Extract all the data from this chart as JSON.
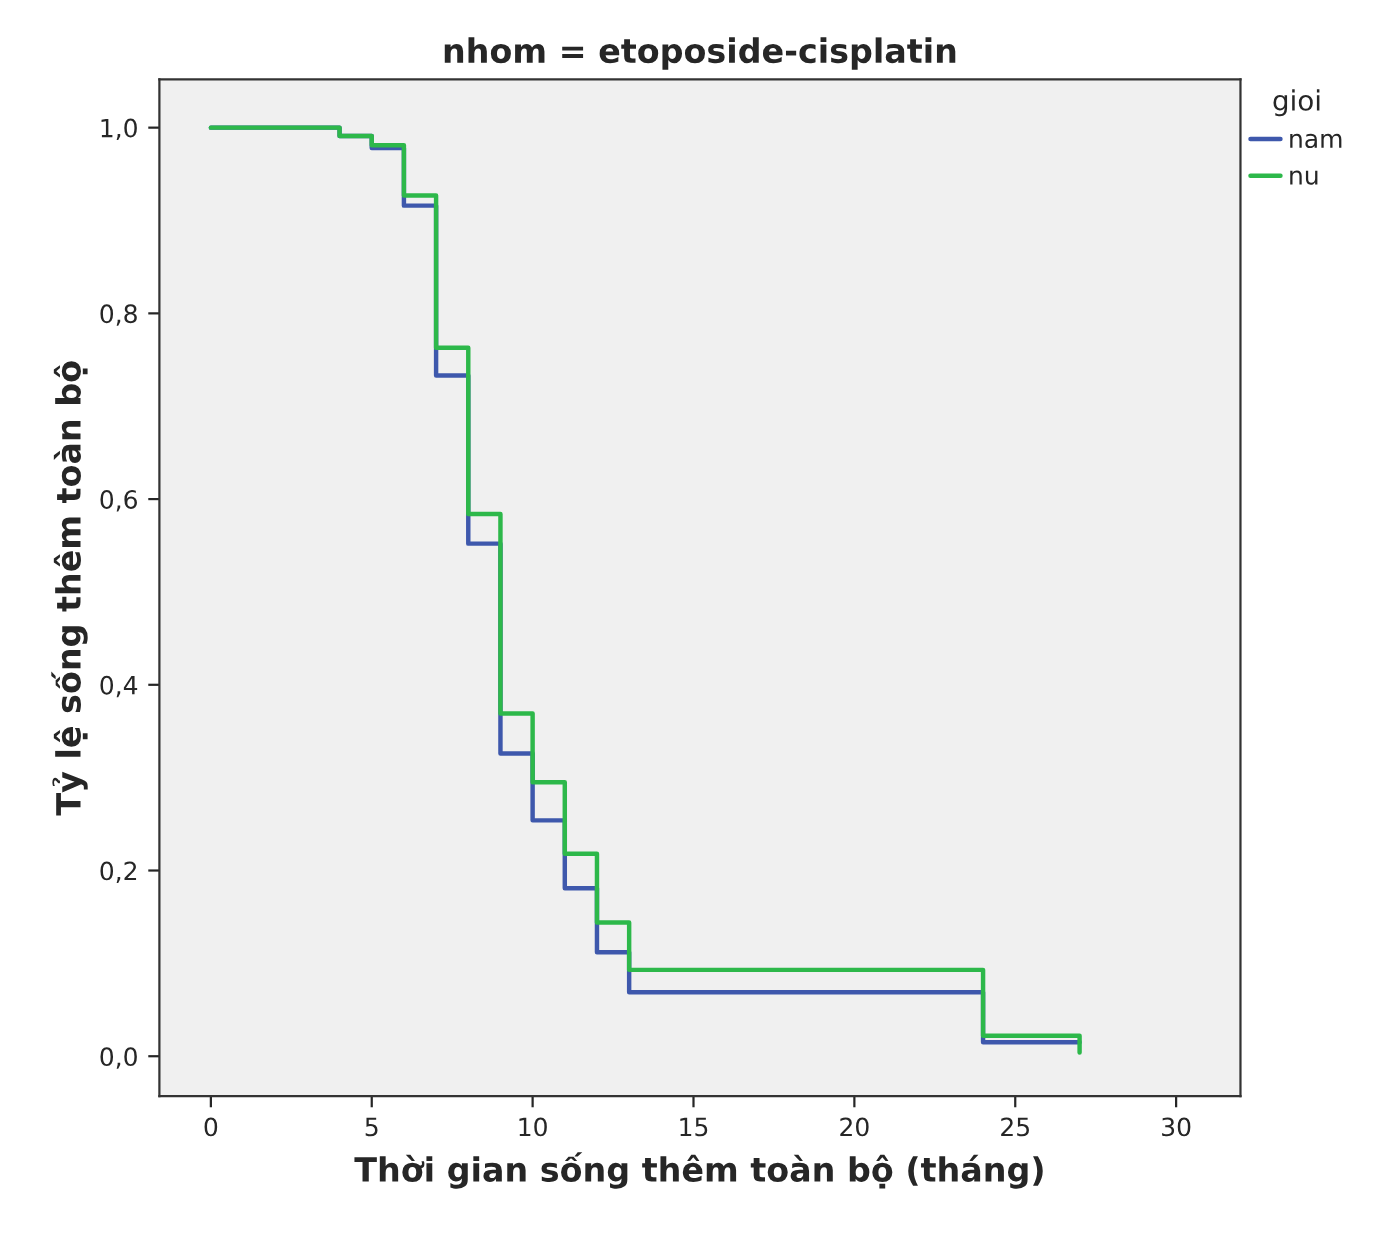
{
  "chart_data": {
    "type": "step",
    "title": "nhom = etoposide-cisplatin",
    "xlabel": "Thời gian sống thêm toàn bộ (tháng)",
    "ylabel": "Tỷ lệ sống thêm toàn bộ",
    "legend_title": "gioi",
    "legend": "top right",
    "grid": false,
    "x": [
      0,
      4,
      5,
      6,
      7,
      8,
      9,
      10,
      11,
      12,
      13,
      24,
      27
    ],
    "series": [
      {
        "name": "nam",
        "color": "#3e58ac",
        "values": [
          1.0,
          0.991,
          0.978,
          0.916,
          0.733,
          0.552,
          0.326,
          0.254,
          0.181,
          0.112,
          0.069,
          0.015,
          0.015
        ]
      },
      {
        "name": "nu",
        "color": "#2db84a",
        "values": [
          1.0,
          0.991,
          0.981,
          0.927,
          0.763,
          0.584,
          0.369,
          0.295,
          0.218,
          0.144,
          0.093,
          0.022,
          0.004
        ]
      }
    ],
    "xlim": [
      -1.6,
      32
    ],
    "ylim": [
      -0.043,
      1.052
    ],
    "xticks": [
      0,
      5,
      10,
      15,
      20,
      25,
      30
    ],
    "yticks": [
      {
        "value": 0,
        "label": "0,0"
      },
      {
        "value": 0.2,
        "label": "0,2"
      },
      {
        "value": 0.4,
        "label": "0,4"
      },
      {
        "value": 0.6,
        "label": "0,6"
      },
      {
        "value": 0.8,
        "label": "0,8"
      },
      {
        "value": 1.0,
        "label": "1,0"
      }
    ]
  }
}
